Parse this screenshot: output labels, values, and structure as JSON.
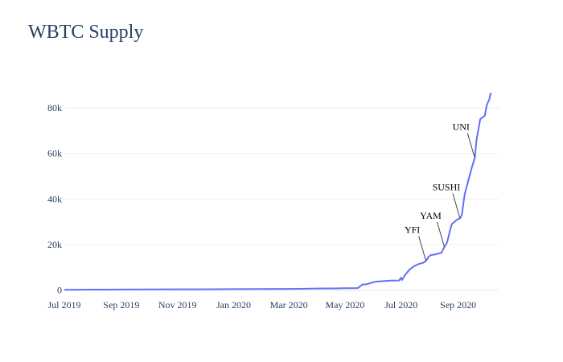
{
  "chart_data": {
    "type": "line",
    "title": "WBTC Supply",
    "xlabel": "",
    "ylabel": "",
    "grid": true,
    "line_color": "#636efa",
    "x_range": [
      "2019-07-01",
      "2020-10-15"
    ],
    "y_range": [
      -1500,
      92000
    ],
    "y_ticks": [
      {
        "value": 0,
        "label": "0"
      },
      {
        "value": 20000,
        "label": "20k"
      },
      {
        "value": 40000,
        "label": "40k"
      },
      {
        "value": 60000,
        "label": "60k"
      },
      {
        "value": 80000,
        "label": "80k"
      }
    ],
    "x_ticks": [
      {
        "value": "2019-07-01",
        "label": "Jul 2019"
      },
      {
        "value": "2019-09-01",
        "label": "Sep 2019"
      },
      {
        "value": "2019-11-01",
        "label": "Nov 2019"
      },
      {
        "value": "2020-01-01",
        "label": "Jan 2020"
      },
      {
        "value": "2020-03-01",
        "label": "Mar 2020"
      },
      {
        "value": "2020-05-01",
        "label": "May 2020"
      },
      {
        "value": "2020-07-01",
        "label": "Jul 2020"
      },
      {
        "value": "2020-09-01",
        "label": "Sep 2020"
      }
    ],
    "series": [
      {
        "x": [
          "2019-07-01",
          "2019-08-01",
          "2019-09-01",
          "2019-10-01",
          "2019-11-01",
          "2019-12-01",
          "2020-01-01",
          "2020-02-01",
          "2020-03-01",
          "2020-03-20",
          "2020-04-01",
          "2020-04-20",
          "2020-05-01",
          "2020-05-15",
          "2020-05-20",
          "2020-05-24",
          "2020-06-01",
          "2020-06-05",
          "2020-06-20",
          "2020-06-29",
          "2020-07-01",
          "2020-07-02",
          "2020-07-05",
          "2020-07-08",
          "2020-07-10",
          "2020-07-15",
          "2020-07-20",
          "2020-07-25",
          "2020-07-28",
          "2020-07-31",
          "2020-08-03",
          "2020-08-05",
          "2020-08-10",
          "2020-08-14",
          "2020-08-17",
          "2020-08-20",
          "2020-08-23",
          "2020-08-25",
          "2020-08-28",
          "2020-08-31",
          "2020-09-03",
          "2020-09-05",
          "2020-09-08",
          "2020-09-12",
          "2020-09-16",
          "2020-09-19",
          "2020-09-21",
          "2020-09-25",
          "2020-09-28",
          "2020-09-30",
          "2020-10-02",
          "2020-10-05",
          "2020-10-06",
          "2020-10-07"
        ],
        "y": [
          200,
          250,
          300,
          350,
          400,
          420,
          480,
          520,
          580,
          650,
          750,
          800,
          900,
          950,
          2500,
          2600,
          3500,
          3800,
          4200,
          4300,
          5500,
          4500,
          6500,
          8000,
          9000,
          10500,
          11500,
          12000,
          12800,
          14800,
          15500,
          15500,
          16000,
          16500,
          19000,
          21000,
          26000,
          29000,
          30000,
          31000,
          31500,
          33000,
          42000,
          48000,
          54000,
          58000,
          66000,
          75000,
          76000,
          76500,
          81000,
          84000,
          86000,
          86500
        ]
      }
    ],
    "annotations": [
      {
        "text": "YFI",
        "x": "2020-07-28",
        "y": 12800
      },
      {
        "text": "YAM",
        "x": "2020-08-17",
        "y": 19000
      },
      {
        "text": "SUSHI",
        "x": "2020-09-03",
        "y": 31500
      },
      {
        "text": "UNI",
        "x": "2020-09-19",
        "y": 58000
      }
    ]
  }
}
